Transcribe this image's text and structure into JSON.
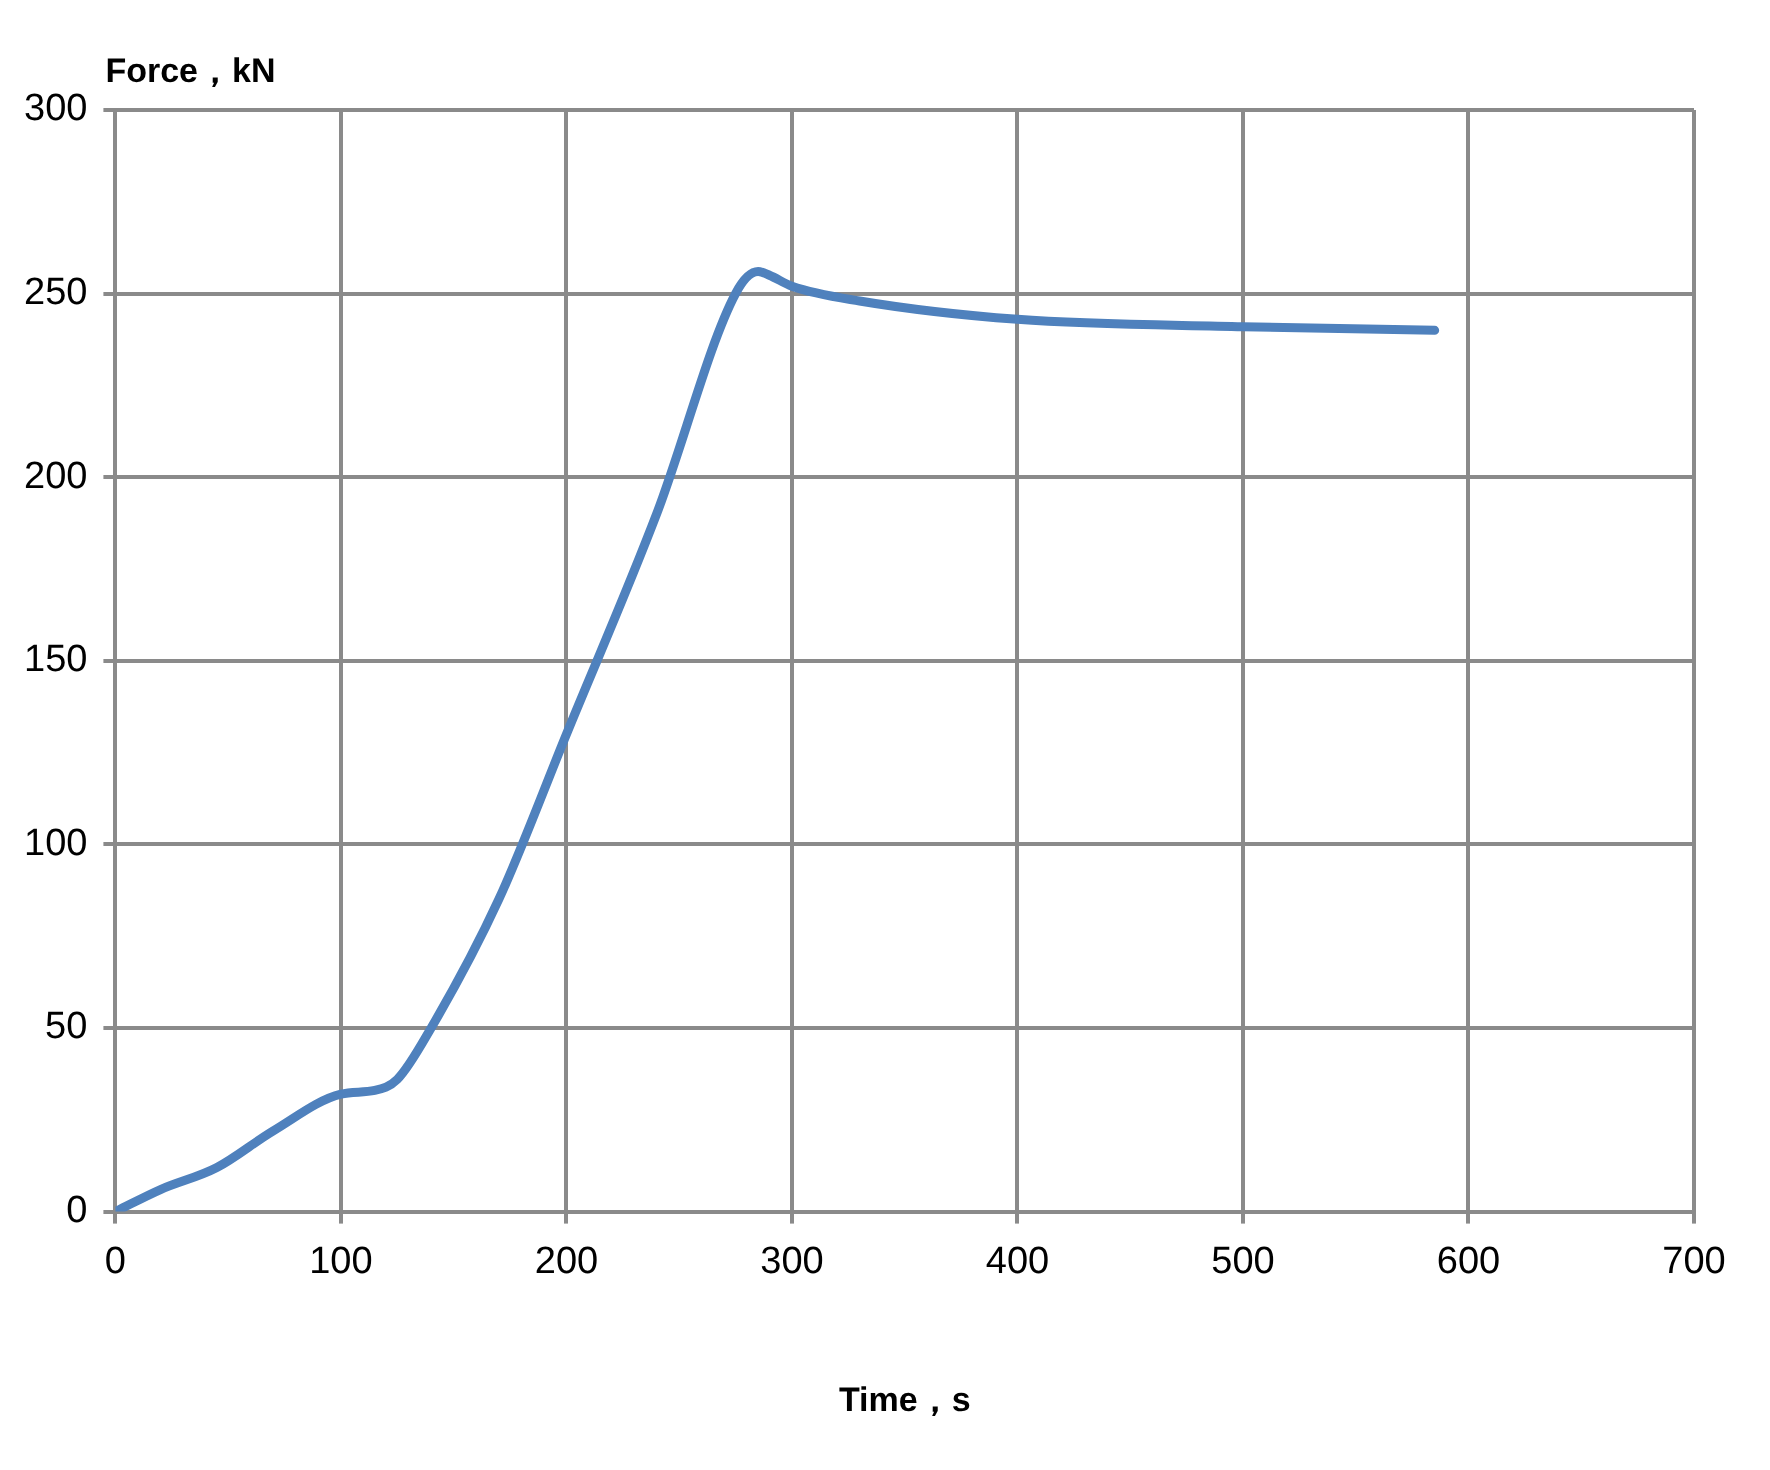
{
  "chart_data": {
    "type": "line",
    "xlabel": "Time，s",
    "ylabel": "Force，kN",
    "xlim": [
      0,
      700
    ],
    "xticks": [
      0,
      100,
      200,
      300,
      400,
      500,
      600,
      700
    ],
    "ylim": [
      0,
      300
    ],
    "yticks": [
      0,
      50,
      100,
      150,
      200,
      250,
      300
    ],
    "grid": true,
    "marker": "none",
    "line_style": "solid",
    "series": [
      {
        "color": "#4f81bd",
        "x": [
          0,
          20,
          45,
          70,
          100,
          115,
          125,
          140,
          170,
          200,
          240,
          275,
          285,
          290,
          300,
          330,
          400,
          500,
          585
        ],
        "values": [
          0,
          6,
          12,
          22,
          32,
          33,
          36,
          50,
          85,
          130,
          190,
          250,
          256,
          255,
          252,
          248,
          243,
          241,
          240
        ]
      }
    ]
  }
}
